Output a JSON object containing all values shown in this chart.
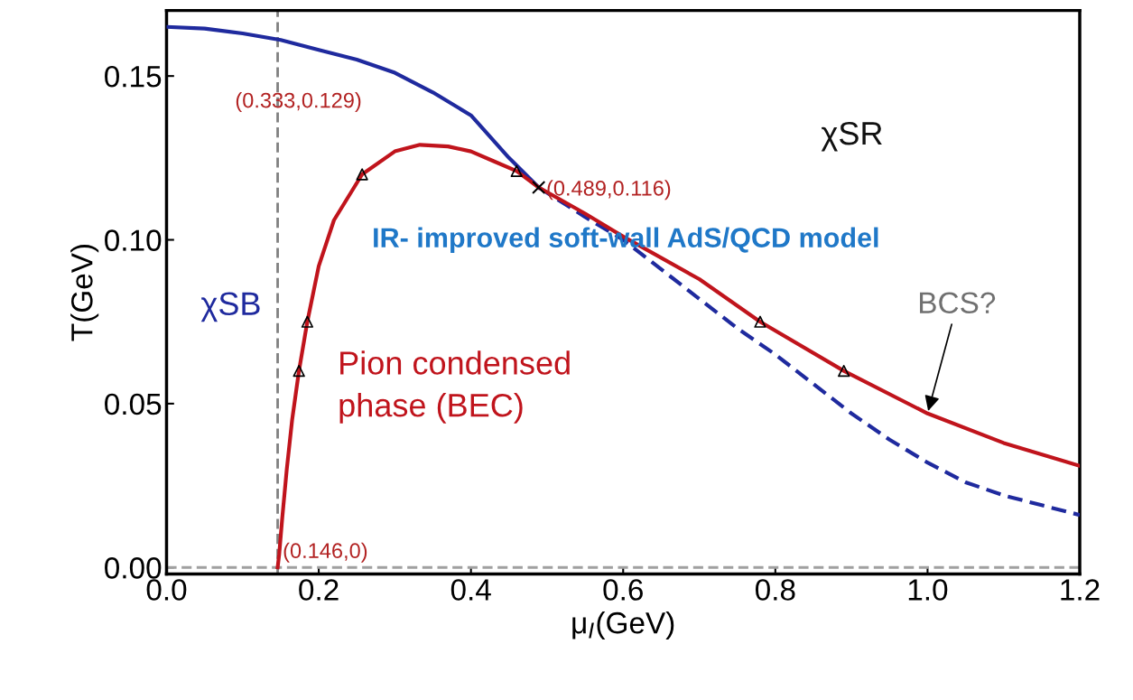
{
  "chart_data": {
    "type": "line",
    "xlabel": "μ$_{I}$(GeV)",
    "ylabel": "T(GeV)",
    "xlim": [
      0,
      1.2
    ],
    "ylim": [
      -0.002,
      0.17
    ],
    "xticks": [
      {
        "value": 0,
        "label": "0.0"
      },
      {
        "value": 0.2,
        "label": "0.2"
      },
      {
        "value": 0.4,
        "label": "0.4"
      },
      {
        "value": 0.6,
        "label": "0.6"
      },
      {
        "value": 0.8,
        "label": "0.8"
      },
      {
        "value": 1.0,
        "label": "1.0"
      },
      {
        "value": 1.2,
        "label": "1.2"
      }
    ],
    "yticks": [
      {
        "value": 0,
        "label": "0.00"
      },
      {
        "value": 0.05,
        "label": "0.05"
      },
      {
        "value": 0.1,
        "label": "0.10"
      },
      {
        "value": 0.15,
        "label": "0.15"
      }
    ],
    "grid": false,
    "legend": false,
    "series": [
      {
        "color": "#1f2a9e",
        "line_style": "solid",
        "x": [
          0,
          0.05,
          0.1,
          0.15,
          0.2,
          0.25,
          0.3,
          0.35,
          0.4,
          0.45,
          0.489
        ],
        "values": [
          0.165,
          0.1645,
          0.163,
          0.161,
          0.158,
          0.155,
          0.151,
          0.145,
          0.138,
          0.125,
          0.116
        ]
      },
      {
        "color": "#1f2a9e",
        "line_style": "dashed",
        "x": [
          0.489,
          0.55,
          0.6,
          0.65,
          0.7,
          0.75,
          0.8,
          0.85,
          0.9,
          0.95,
          1.0,
          1.05,
          1.1,
          1.15,
          1.2
        ],
        "values": [
          0.116,
          0.107,
          0.1,
          0.091,
          0.082,
          0.073,
          0.065,
          0.056,
          0.047,
          0.039,
          0.032,
          0.026,
          0.022,
          0.019,
          0.016
        ]
      },
      {
        "color": "#c0141c",
        "line_style": "solid",
        "x": [
          0.146,
          0.148,
          0.152,
          0.158,
          0.165,
          0.174,
          0.185,
          0.2,
          0.22,
          0.257,
          0.3,
          0.333,
          0.37,
          0.4,
          0.43,
          0.46,
          0.489,
          0.55,
          0.6,
          0.7,
          0.78,
          0.89,
          1.0,
          1.1,
          1.2
        ],
        "values": [
          0,
          0.004,
          0.015,
          0.03,
          0.045,
          0.06,
          0.075,
          0.092,
          0.106,
          0.12,
          0.127,
          0.129,
          0.1285,
          0.127,
          0.124,
          0.121,
          0.116,
          0.108,
          0.101,
          0.088,
          0.075,
          0.06,
          0.047,
          0.038,
          0.031
        ]
      },
      {
        "type": "scatter",
        "color": "#000000",
        "marker": "triangle",
        "x": [
          0.174,
          0.185,
          0.257,
          0.46,
          0.78,
          0.89
        ],
        "values": [
          0.06,
          0.075,
          0.12,
          0.121,
          0.075,
          0.06
        ]
      },
      {
        "type": "scatter",
        "color": "#000000",
        "marker": "cross",
        "x": [
          0.489
        ],
        "values": [
          0.116
        ]
      }
    ],
    "ref_lines": [
      {
        "axis": "x",
        "value": 0.146,
        "color": "#808080",
        "line_style": "dashed"
      },
      {
        "axis": "y",
        "value": 0,
        "color": "#a0a0a0",
        "line_style": "dashed"
      }
    ],
    "annotations": [
      "(0.333,0.129)",
      {
        "text": "(0.489,0.116)",
        "x": 0.489,
        "y": 0.116
      },
      {
        "text": "(0.146,0)",
        "x": 0.146,
        "y": 0
      },
      "χSR",
      "χSB",
      "Pion condensed\nphase (BEC)",
      {
        "text": "BCS?",
        "x": 1.0,
        "y": 0.047
      },
      "IR- improved soft-wall AdS/QCD model"
    ]
  }
}
